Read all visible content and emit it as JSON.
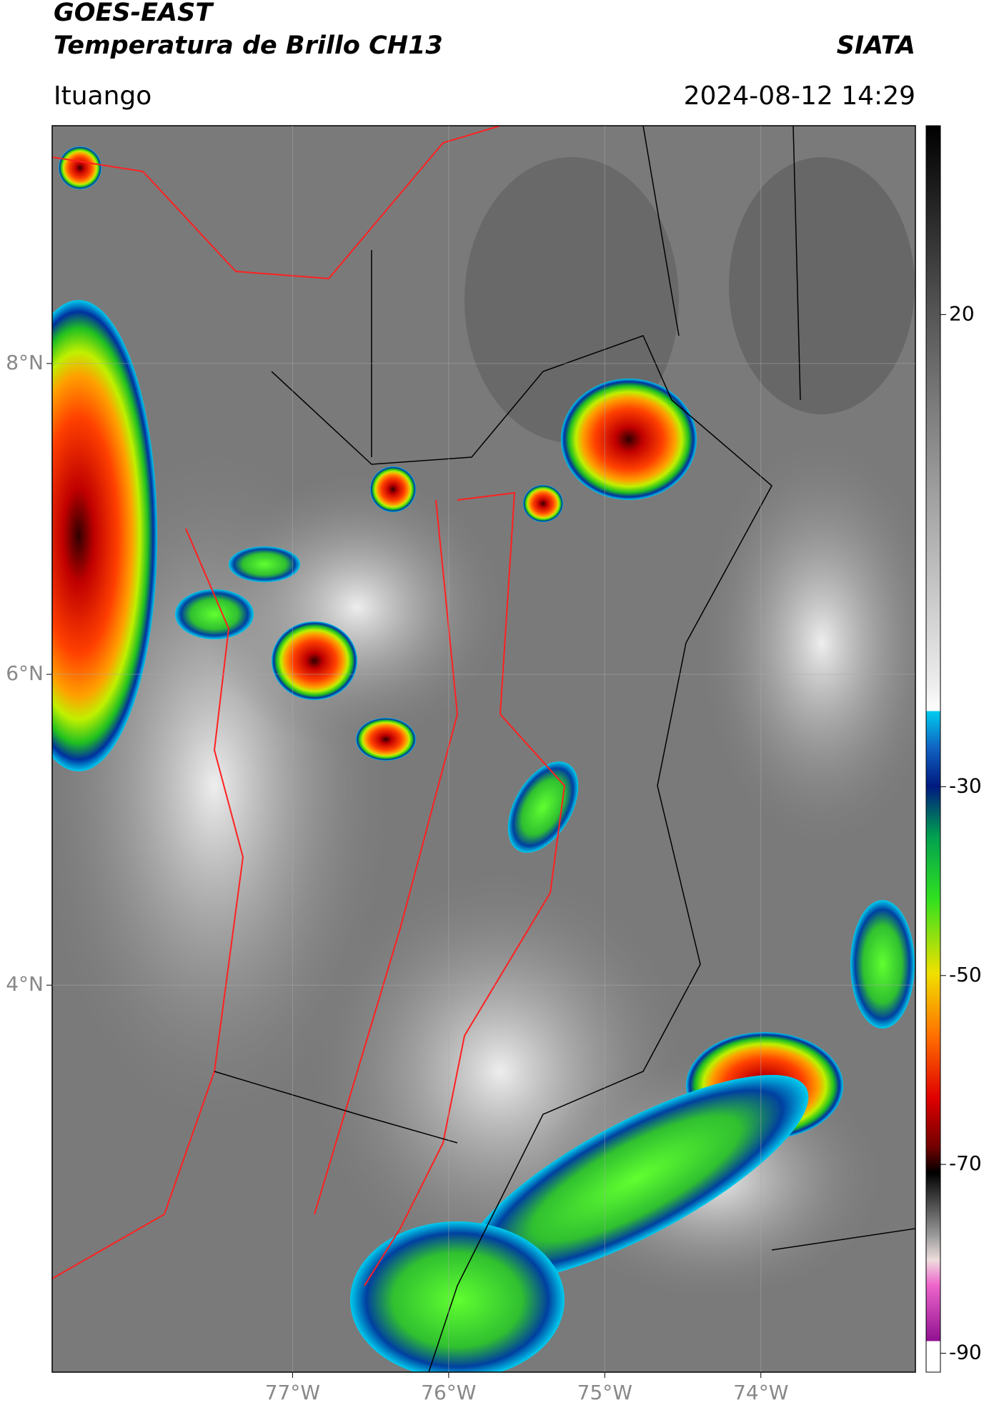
{
  "header": {
    "satellite": "GOES-EAST",
    "product": "Temperatura de Brillo CH13",
    "agency": "SIATA",
    "location": "Ituango",
    "datetime": "2024-08-12 14:29"
  },
  "map": {
    "latlim": [
      1.51,
      9.53
    ],
    "lonlim": [
      -78.54,
      -73.01
    ],
    "lat_ticks": [
      {
        "value": 8,
        "label": "8°N"
      },
      {
        "value": 6,
        "label": "6°N"
      },
      {
        "value": 4,
        "label": "4°N"
      }
    ],
    "lon_ticks": [
      {
        "value": -77,
        "label": "77°W"
      },
      {
        "value": -76,
        "label": "76°W"
      },
      {
        "value": -75,
        "label": "75°W"
      },
      {
        "value": -74,
        "label": "74°W"
      }
    ]
  },
  "colorbar": {
    "lim": [
      -92,
      40
    ],
    "ticks": [
      20,
      -30,
      -50,
      -70,
      -90
    ]
  }
}
